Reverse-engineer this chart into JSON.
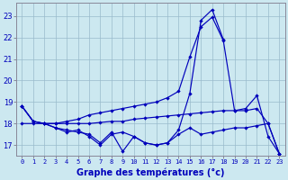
{
  "title": "Graphe des températures (°c)",
  "hours": [
    0,
    1,
    2,
    3,
    4,
    5,
    6,
    7,
    8,
    9,
    10,
    11,
    12,
    13,
    14,
    15,
    16,
    17,
    18,
    19,
    20,
    21,
    22,
    23
  ],
  "line_zigzag": [
    18.8,
    18.1,
    18.0,
    17.8,
    17.6,
    17.7,
    17.4,
    17.0,
    17.5,
    17.6,
    17.4,
    17.1,
    17.0,
    17.1,
    17.5,
    17.8,
    17.5,
    17.6,
    17.7,
    17.8,
    17.8,
    17.9,
    18.0,
    16.6
  ],
  "line_peaked_x": [
    0,
    1,
    2,
    3,
    4,
    5,
    6,
    7,
    8,
    9,
    10,
    11,
    12,
    13,
    14,
    15,
    16,
    17,
    18
  ],
  "line_peaked_y": [
    18.8,
    18.1,
    18.0,
    17.8,
    17.7,
    17.6,
    17.5,
    17.1,
    17.6,
    16.7,
    17.4,
    17.1,
    17.0,
    17.1,
    17.7,
    19.4,
    22.8,
    23.3,
    21.9
  ],
  "line_diagonal_x": [
    0,
    1,
    2,
    3,
    4,
    5,
    6,
    7,
    8,
    9,
    10,
    11,
    12,
    13,
    14,
    15,
    16,
    17,
    18,
    19,
    20,
    21,
    22,
    23
  ],
  "line_diagonal_y": [
    18.8,
    18.1,
    18.0,
    18.0,
    18.1,
    18.2,
    18.4,
    18.5,
    18.6,
    18.7,
    18.8,
    18.9,
    19.0,
    19.2,
    19.5,
    21.1,
    22.5,
    22.95,
    21.85,
    18.6,
    18.7,
    19.3,
    17.4,
    16.6
  ],
  "line_flat": [
    18.0,
    18.0,
    18.0,
    18.0,
    18.0,
    18.0,
    18.0,
    18.05,
    18.1,
    18.1,
    18.2,
    18.25,
    18.3,
    18.35,
    18.4,
    18.45,
    18.5,
    18.55,
    18.6,
    18.6,
    18.6,
    18.7,
    18.0,
    16.6
  ],
  "ylim": [
    16.5,
    23.6
  ],
  "yticks": [
    17,
    18,
    19,
    20,
    21,
    22,
    23
  ],
  "line_color": "#0000bb",
  "bg_color": "#cce8f0",
  "grid_color": "#99bbcc",
  "axis_color": "#888899"
}
